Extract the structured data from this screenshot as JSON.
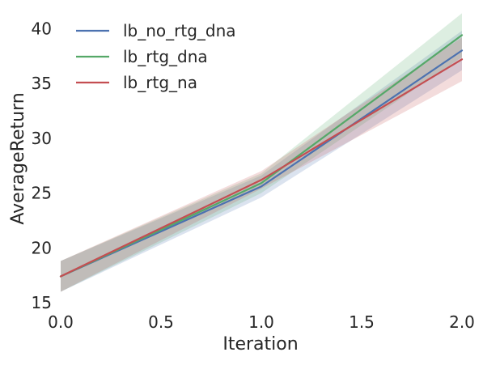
{
  "chart_data": {
    "type": "line",
    "title": "",
    "xlabel": "Iteration",
    "ylabel": "AverageReturn",
    "xlim": [
      0.0,
      2.0
    ],
    "ylim": [
      15,
      41.5
    ],
    "xticks": [
      0.0,
      0.5,
      1.0,
      1.5,
      2.0
    ],
    "xtick_labels": [
      "0.0",
      "0.5",
      "1.0",
      "1.5",
      "2.0"
    ],
    "yticks": [
      15,
      20,
      25,
      30,
      35,
      40
    ],
    "ytick_labels": [
      "15",
      "20",
      "25",
      "30",
      "35",
      "40"
    ],
    "grid": false,
    "legend_position": "top-left",
    "x": [
      0.0,
      1.0,
      2.0
    ],
    "series": [
      {
        "name": "lb_no_rtg_dna",
        "color": "#4c72b0",
        "values": [
          17.4,
          25.6,
          38.0
        ],
        "lower": [
          16.0,
          24.6,
          36.2
        ],
        "upper": [
          18.8,
          26.6,
          39.8
        ]
      },
      {
        "name": "lb_rtg_dna",
        "color": "#55a868",
        "values": [
          17.4,
          25.9,
          39.4
        ],
        "lower": [
          16.0,
          25.0,
          37.4
        ],
        "upper": [
          18.8,
          26.8,
          41.4
        ]
      },
      {
        "name": "lb_rtg_na",
        "color": "#c44e52",
        "values": [
          17.4,
          26.2,
          37.2
        ],
        "lower": [
          16.0,
          25.4,
          35.2
        ],
        "upper": [
          18.8,
          27.0,
          39.2
        ]
      }
    ]
  }
}
